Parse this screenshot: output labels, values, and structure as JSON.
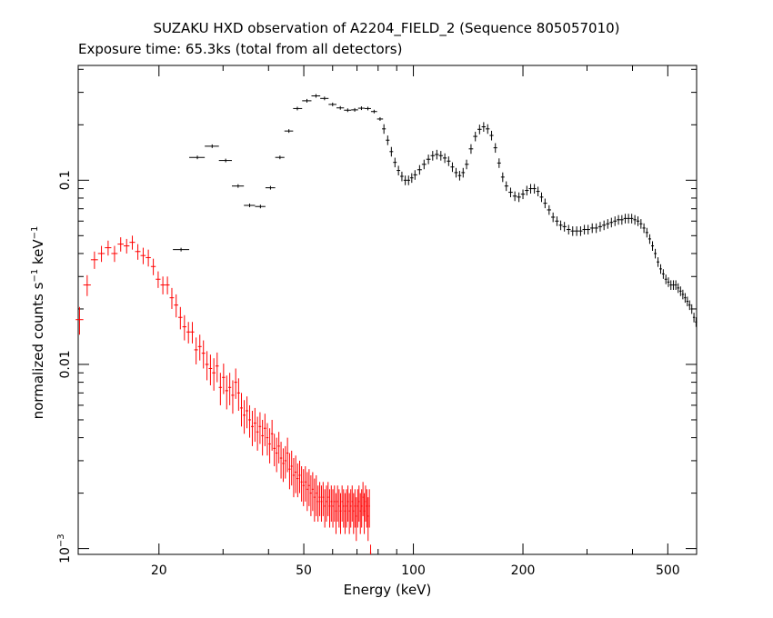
{
  "chart_data": {
    "type": "scatter",
    "title": "SUZAKU HXD observation of A2204_FIELD_2 (Sequence 805057010)",
    "subtitle": "Exposure time: 65.3ks (total from all detectors)",
    "xlabel": "Energy (keV)",
    "ylabel": {
      "prefix": "normalized counts s",
      "exp1": "−1",
      "mid": " keV",
      "exp2": "−1"
    },
    "x_scale": "log",
    "y_scale": "log",
    "xlim": [
      12,
      600
    ],
    "ylim": [
      0.00093,
      0.42
    ],
    "grid": false,
    "x_ticks": [
      {
        "value": 20,
        "label": "20"
      },
      {
        "value": 50,
        "label": "50"
      },
      {
        "value": 100,
        "label": "100"
      },
      {
        "value": 200,
        "label": "200"
      },
      {
        "value": 500,
        "label": "500"
      }
    ],
    "x_minor_ticks": [
      30,
      40,
      60,
      70,
      80,
      90,
      300,
      400
    ],
    "y_ticks": [
      {
        "value": 0.001,
        "label": "10",
        "sup": "−3"
      },
      {
        "value": 0.01,
        "label": "0.01",
        "sup": ""
      },
      {
        "value": 0.1,
        "label": "0.1",
        "sup": ""
      }
    ],
    "y_minor_ticks": [
      0.002,
      0.003,
      0.004,
      0.005,
      0.006,
      0.007,
      0.008,
      0.009,
      0.02,
      0.03,
      0.04,
      0.05,
      0.06,
      0.07,
      0.08,
      0.09,
      0.2,
      0.3,
      0.4
    ],
    "series": [
      {
        "color": "#ff0000",
        "binned": false,
        "points": [
          [
            12.1,
            0.0175,
            0.003
          ],
          [
            12.7,
            0.027,
            0.0035
          ],
          [
            13.3,
            0.037,
            0.004
          ],
          [
            13.9,
            0.04,
            0.004
          ],
          [
            14.5,
            0.043,
            0.004
          ],
          [
            15.1,
            0.04,
            0.004
          ],
          [
            15.7,
            0.045,
            0.004
          ],
          [
            16.3,
            0.044,
            0.004
          ],
          [
            16.9,
            0.046,
            0.004
          ],
          [
            17.5,
            0.041,
            0.004
          ],
          [
            18.1,
            0.039,
            0.004
          ],
          [
            18.7,
            0.038,
            0.004
          ],
          [
            19.3,
            0.034,
            0.0035
          ],
          [
            19.9,
            0.029,
            0.003
          ],
          [
            20.5,
            0.027,
            0.003
          ],
          [
            21.1,
            0.027,
            0.003
          ],
          [
            21.7,
            0.023,
            0.003
          ],
          [
            22.3,
            0.021,
            0.003
          ],
          [
            22.9,
            0.018,
            0.0025
          ],
          [
            23.5,
            0.016,
            0.0025
          ],
          [
            24.1,
            0.015,
            0.002
          ],
          [
            24.7,
            0.015,
            0.002
          ],
          [
            25.3,
            0.012,
            0.002
          ],
          [
            25.9,
            0.0125,
            0.002
          ],
          [
            26.5,
            0.0115,
            0.002
          ],
          [
            27.1,
            0.01,
            0.0018
          ],
          [
            27.7,
            0.0095,
            0.0018
          ],
          [
            28.3,
            0.009,
            0.0018
          ],
          [
            28.9,
            0.0098,
            0.0018
          ],
          [
            29.5,
            0.0075,
            0.0015
          ],
          [
            30.1,
            0.0085,
            0.0016
          ],
          [
            30.7,
            0.0072,
            0.0015
          ],
          [
            31.3,
            0.0075,
            0.0015
          ],
          [
            31.9,
            0.0068,
            0.0014
          ],
          [
            32.5,
            0.008,
            0.0015
          ],
          [
            33.1,
            0.007,
            0.0014
          ],
          [
            33.7,
            0.0058,
            0.0012
          ],
          [
            34.3,
            0.0053,
            0.0011
          ],
          [
            34.9,
            0.0056,
            0.0011
          ],
          [
            35.5,
            0.005,
            0.001
          ],
          [
            36.1,
            0.0046,
            0.001
          ],
          [
            36.7,
            0.0048,
            0.001
          ],
          [
            37.3,
            0.0043,
            0.0009
          ],
          [
            37.9,
            0.0046,
            0.0009
          ],
          [
            38.5,
            0.0041,
            0.0009
          ],
          [
            39.1,
            0.0045,
            0.0009
          ],
          [
            39.7,
            0.004,
            0.0008
          ],
          [
            40.3,
            0.0037,
            0.0008
          ],
          [
            40.9,
            0.0042,
            0.0008
          ],
          [
            41.5,
            0.0035,
            0.0007
          ],
          [
            42.1,
            0.0033,
            0.0007
          ],
          [
            42.7,
            0.0036,
            0.0007
          ],
          [
            43.3,
            0.0031,
            0.0007
          ],
          [
            43.9,
            0.0029,
            0.0006
          ],
          [
            44.5,
            0.003,
            0.0006
          ],
          [
            45.1,
            0.0033,
            0.0007
          ],
          [
            45.7,
            0.0027,
            0.0006
          ],
          [
            46.3,
            0.0028,
            0.0006
          ],
          [
            46.9,
            0.0025,
            0.0006
          ],
          [
            47.5,
            0.0026,
            0.0006
          ],
          [
            48.1,
            0.0024,
            0.0005
          ],
          [
            48.7,
            0.0025,
            0.0005
          ],
          [
            49.3,
            0.0023,
            0.0005
          ],
          [
            49.9,
            0.0022,
            0.0005
          ],
          [
            50.5,
            0.0023,
            0.0005
          ],
          [
            51.1,
            0.0021,
            0.0005
          ],
          [
            51.7,
            0.0022,
            0.0005
          ],
          [
            52.3,
            0.002,
            0.0005
          ],
          [
            52.9,
            0.0021,
            0.0005
          ],
          [
            53.5,
            0.0019,
            0.0005
          ],
          [
            54.1,
            0.002,
            0.0005
          ],
          [
            54.7,
            0.0018,
            0.0004
          ],
          [
            55.3,
            0.0019,
            0.0004
          ],
          [
            55.9,
            0.0018,
            0.0004
          ],
          [
            56.5,
            0.0019,
            0.0004
          ],
          [
            57.1,
            0.0017,
            0.0004
          ],
          [
            57.7,
            0.0018,
            0.0004
          ],
          [
            58.3,
            0.0019,
            0.0004
          ],
          [
            58.9,
            0.0017,
            0.0004
          ],
          [
            59.5,
            0.0018,
            0.0004
          ],
          [
            60.1,
            0.0017,
            0.0004
          ],
          [
            60.7,
            0.0018,
            0.0004
          ],
          [
            61.3,
            0.0016,
            0.0004
          ],
          [
            61.9,
            0.0018,
            0.0004
          ],
          [
            62.5,
            0.0017,
            0.0004
          ],
          [
            63.1,
            0.0016,
            0.0004
          ],
          [
            63.7,
            0.0018,
            0.0004
          ],
          [
            64.3,
            0.0017,
            0.0004
          ],
          [
            64.9,
            0.0016,
            0.0004
          ],
          [
            65.5,
            0.0017,
            0.0004
          ],
          [
            66.1,
            0.0018,
            0.0004
          ],
          [
            66.7,
            0.0016,
            0.0004
          ],
          [
            67.3,
            0.0017,
            0.0004
          ],
          [
            67.9,
            0.0018,
            0.0004
          ],
          [
            68.5,
            0.0016,
            0.0004
          ],
          [
            69.1,
            0.0017,
            0.0004
          ],
          [
            69.7,
            0.0015,
            0.0004
          ],
          [
            70.3,
            0.0017,
            0.0004
          ],
          [
            70.9,
            0.0018,
            0.0004
          ],
          [
            71.5,
            0.0016,
            0.0004
          ],
          [
            72.1,
            0.0017,
            0.0004
          ],
          [
            72.7,
            0.0019,
            0.0004
          ],
          [
            73.3,
            0.0016,
            0.0004
          ],
          [
            73.9,
            0.0018,
            0.0004
          ],
          [
            74.5,
            0.0017,
            0.0004
          ],
          [
            75.1,
            0.0015,
            0.0004
          ],
          [
            75.7,
            0.0017,
            0.0004
          ],
          [
            76.3,
            0.00095,
            0.0001
          ]
        ]
      },
      {
        "color": "#000000",
        "binned": true,
        "points": [
          [
            23.0,
            0.042
          ],
          [
            25.5,
            0.133
          ],
          [
            28.0,
            0.153
          ],
          [
            30.5,
            0.128
          ],
          [
            33.0,
            0.093
          ],
          [
            35.5,
            0.073
          ],
          [
            38.0,
            0.072
          ],
          [
            40.5,
            0.091
          ],
          [
            43.0,
            0.133
          ],
          [
            45.5,
            0.185
          ],
          [
            48.0,
            0.245
          ],
          [
            51.0,
            0.27
          ],
          [
            54.0,
            0.287
          ],
          [
            57.0,
            0.278
          ],
          [
            60.0,
            0.258
          ],
          [
            63.0,
            0.247
          ],
          [
            66.0,
            0.24
          ],
          [
            69.0,
            0.241
          ],
          [
            72.0,
            0.246
          ],
          [
            75.0,
            0.245
          ],
          [
            78.0,
            0.236
          ],
          [
            81.0,
            0.215
          ]
        ]
      },
      {
        "color": "#000000",
        "binned": false,
        "points": [
          [
            83.0,
            0.19
          ],
          [
            85.0,
            0.165
          ],
          [
            87.0,
            0.143
          ],
          [
            89.0,
            0.125
          ],
          [
            91.0,
            0.113
          ],
          [
            93.0,
            0.105
          ],
          [
            95.0,
            0.1
          ],
          [
            97.0,
            0.1
          ],
          [
            99.0,
            0.103
          ],
          [
            101.0,
            0.107
          ],
          [
            104.0,
            0.114
          ],
          [
            107.0,
            0.122
          ],
          [
            110.0,
            0.13
          ],
          [
            113.0,
            0.136
          ],
          [
            116.0,
            0.138
          ],
          [
            119.0,
            0.136
          ],
          [
            122.0,
            0.132
          ],
          [
            125.0,
            0.127
          ],
          [
            128.0,
            0.118
          ],
          [
            131.0,
            0.11
          ],
          [
            134.0,
            0.106
          ],
          [
            137.0,
            0.11
          ],
          [
            140.0,
            0.122
          ],
          [
            144.0,
            0.148
          ],
          [
            148.0,
            0.173
          ],
          [
            152.0,
            0.189
          ],
          [
            156.0,
            0.195
          ],
          [
            160.0,
            0.19
          ],
          [
            164.0,
            0.175
          ],
          [
            168.0,
            0.15
          ],
          [
            172.0,
            0.124
          ],
          [
            176.0,
            0.104
          ],
          [
            180.0,
            0.093
          ],
          [
            185.0,
            0.086
          ],
          [
            190.0,
            0.082
          ],
          [
            195.0,
            0.081
          ],
          [
            200.0,
            0.084
          ],
          [
            205.0,
            0.088
          ],
          [
            210.0,
            0.09
          ],
          [
            215.0,
            0.09
          ],
          [
            220.0,
            0.087
          ],
          [
            225.0,
            0.081
          ],
          [
            230.0,
            0.075
          ],
          [
            236.0,
            0.069
          ],
          [
            242.0,
            0.063
          ],
          [
            248.0,
            0.06
          ],
          [
            254.0,
            0.057
          ],
          [
            260.0,
            0.056
          ],
          [
            267.0,
            0.054
          ],
          [
            274.0,
            0.053
          ],
          [
            281.0,
            0.053
          ],
          [
            288.0,
            0.053
          ],
          [
            295.0,
            0.054
          ],
          [
            302.0,
            0.054
          ],
          [
            310.0,
            0.055
          ],
          [
            318.0,
            0.055
          ],
          [
            326.0,
            0.056
          ],
          [
            334.0,
            0.057
          ],
          [
            342.0,
            0.058
          ],
          [
            350.0,
            0.059
          ],
          [
            358.0,
            0.06
          ],
          [
            366.0,
            0.061
          ],
          [
            374.0,
            0.061
          ],
          [
            382.0,
            0.062
          ],
          [
            390.0,
            0.062
          ],
          [
            398.0,
            0.062
          ],
          [
            406.0,
            0.061
          ],
          [
            414.0,
            0.06
          ],
          [
            422.0,
            0.058
          ],
          [
            430.0,
            0.055
          ],
          [
            438.0,
            0.052
          ],
          [
            446.0,
            0.048
          ],
          [
            454.0,
            0.044
          ],
          [
            462.0,
            0.04
          ],
          [
            470.0,
            0.036
          ],
          [
            478.0,
            0.033
          ],
          [
            486.0,
            0.031
          ],
          [
            494.0,
            0.029
          ],
          [
            502.0,
            0.028
          ],
          [
            510.0,
            0.027
          ],
          [
            518.0,
            0.027
          ],
          [
            526.0,
            0.027
          ],
          [
            534.0,
            0.026
          ],
          [
            542.0,
            0.025
          ],
          [
            550.0,
            0.024
          ],
          [
            558.0,
            0.023
          ],
          [
            566.0,
            0.022
          ],
          [
            574.0,
            0.021
          ],
          [
            582.0,
            0.02
          ],
          [
            590.0,
            0.018
          ],
          [
            598.0,
            0.017
          ]
        ]
      }
    ]
  }
}
